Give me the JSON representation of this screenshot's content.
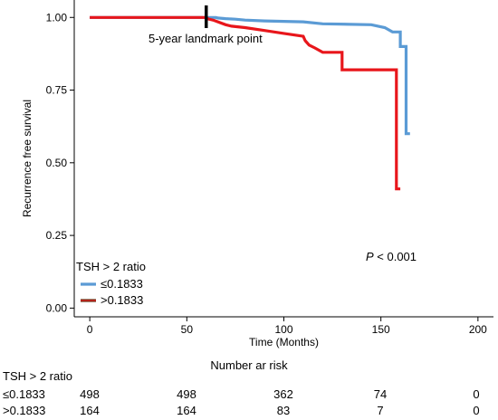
{
  "chart_data": {
    "type": "line",
    "ylabel": "Recurrence free survival",
    "xlabel": "Time (Months)",
    "xlim": [
      -8,
      208
    ],
    "ylim": [
      -0.03,
      1.06
    ],
    "xticks": [
      0,
      50,
      100,
      150,
      200
    ],
    "yticks": [
      "0.00",
      "0.25",
      "0.50",
      "0.75",
      "1.00"
    ],
    "annotations": {
      "landmark_label": "5-year landmark point",
      "landmark_x": 60,
      "p_prefix": "P",
      "p_suffix": " < 0.001"
    },
    "legend": {
      "title": "TSH > 2 ratio",
      "placement": "bottom-left"
    },
    "series": [
      {
        "name": "≤0.1833",
        "color": "#5b9bd5",
        "points": [
          [
            0,
            1.0
          ],
          [
            65,
            1.0
          ],
          [
            66,
            0.998
          ],
          [
            70,
            0.996
          ],
          [
            75,
            0.994
          ],
          [
            80,
            0.991
          ],
          [
            90,
            0.988
          ],
          [
            110,
            0.985
          ],
          [
            120,
            0.978
          ],
          [
            145,
            0.975
          ],
          [
            152,
            0.965
          ],
          [
            156,
            0.95
          ],
          [
            160,
            0.95
          ],
          [
            160,
            0.9
          ],
          [
            163,
            0.9
          ],
          [
            163,
            0.6
          ],
          [
            165,
            0.6
          ]
        ]
      },
      {
        "name": ">0.1833",
        "color": "#e8161b",
        "points": [
          [
            0,
            1.0
          ],
          [
            60,
            1.0
          ],
          [
            61,
            0.995
          ],
          [
            64,
            0.99
          ],
          [
            66,
            0.985
          ],
          [
            70,
            0.975
          ],
          [
            73,
            0.97
          ],
          [
            80,
            0.965
          ],
          [
            90,
            0.955
          ],
          [
            100,
            0.945
          ],
          [
            110,
            0.935
          ],
          [
            111,
            0.92
          ],
          [
            113,
            0.905
          ],
          [
            116,
            0.895
          ],
          [
            120,
            0.88
          ],
          [
            130,
            0.88
          ],
          [
            130,
            0.82
          ],
          [
            158,
            0.82
          ],
          [
            158,
            0.41
          ],
          [
            160,
            0.41
          ]
        ]
      }
    ]
  },
  "risk_table": {
    "title": "Number ar risk",
    "header": "TSH > 2 ratio",
    "times": [
      0,
      50,
      100,
      150,
      200
    ],
    "rows": [
      {
        "label": "≤0.1833",
        "values": [
          "498",
          "498",
          "362",
          "74",
          "0"
        ]
      },
      {
        "label": ">0.1833",
        "values": [
          "164",
          "164",
          "83",
          "7",
          "0"
        ]
      }
    ]
  }
}
